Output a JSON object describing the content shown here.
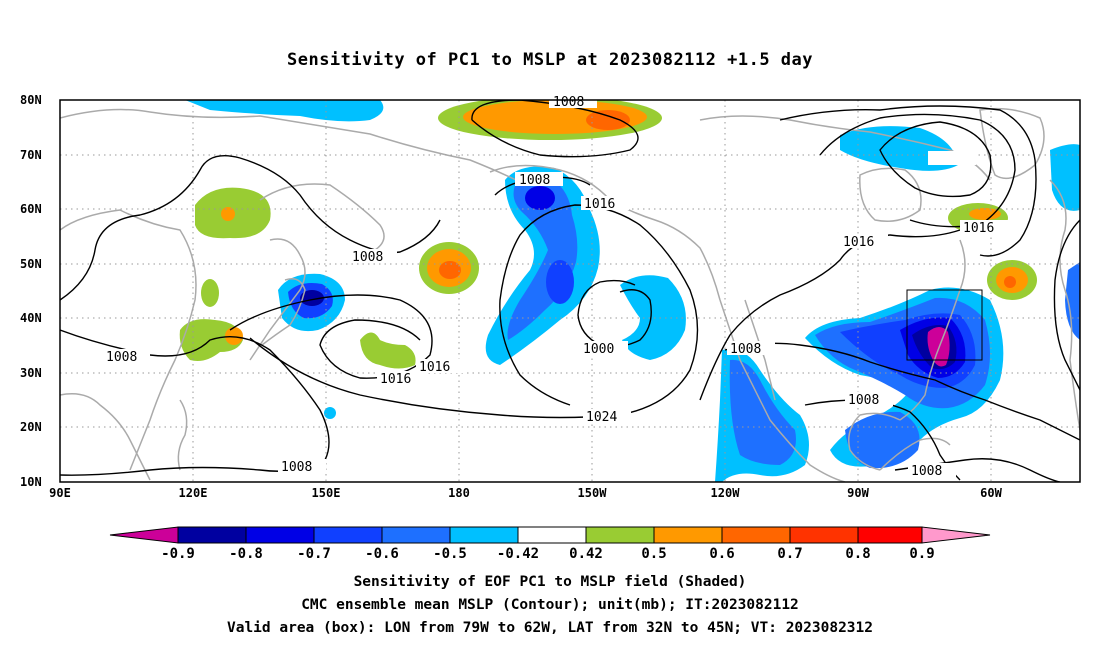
{
  "title": "Sensitivity of PC1 to MSLP at 2023082112 +1.5 day",
  "map": {
    "lat_ticks": [
      "80N",
      "70N",
      "60N",
      "50N",
      "40N",
      "30N",
      "20N",
      "10N"
    ],
    "lon_ticks": [
      "90E",
      "120E",
      "150E",
      "180",
      "150W",
      "120W",
      "90W",
      "60W"
    ],
    "contour_labels": [
      "1008",
      "1008",
      "1008",
      "1008",
      "1008",
      "1008",
      "1008",
      "1008",
      "1016",
      "1016",
      "1016",
      "1016",
      "1016",
      "1024",
      "1000"
    ],
    "valid_box": {
      "lon_from": "79W",
      "lon_to": "62W",
      "lat_from": "32N",
      "lat_to": "45N"
    }
  },
  "colorbar": {
    "labels": [
      "-0.9",
      "-0.8",
      "-0.7",
      "-0.6",
      "-0.5",
      "-0.42",
      "0.42",
      "0.5",
      "0.6",
      "0.7",
      "0.8",
      "0.9"
    ],
    "colors": [
      "#0000a0",
      "#0000e6",
      "#1040ff",
      "#1e70ff",
      "#00c0ff",
      "#ffffff",
      "#99cc33",
      "#ff9900",
      "#ff6600",
      "#ff3300",
      "#ff0000"
    ],
    "low_end_color": "#cc0099",
    "high_end_color": "#ff99cc"
  },
  "captions": [
    "Sensitivity of EOF PC1 to MSLP field (Shaded)",
    "CMC ensemble mean MSLP (Contour); unit(mb); IT:2023082112",
    "Valid area (box): LON from 79W to 62W, LAT from 32N to 45N; VT: 2023082312"
  ],
  "colors": {
    "coastline": "#aaaaaa",
    "contour": "#000000",
    "grid": "#999999"
  }
}
